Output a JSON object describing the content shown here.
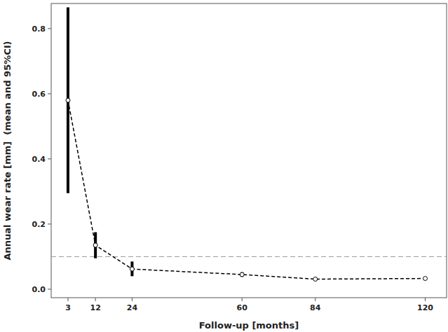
{
  "chart_data": {
    "type": "line",
    "x_label": "Follow-up [months]",
    "y_label": "Annual wear rate [mm]  (mean and 95%CI)",
    "x": [
      3,
      12,
      24,
      60,
      84,
      120
    ],
    "values": [
      0.58,
      0.135,
      0.062,
      0.045,
      0.031,
      0.033
    ],
    "ci_lower": [
      0.295,
      0.095,
      0.04,
      0.038,
      0.028,
      0.03
    ],
    "ci_upper": [
      0.865,
      0.175,
      0.085,
      0.052,
      0.034,
      0.036
    ],
    "reference_line": 0.1,
    "color": "#000000",
    "marker": "circle",
    "line_style": "dashed",
    "xlim": [
      -2.5,
      127
    ],
    "ylim": [
      -0.026,
      0.877
    ],
    "xticks": [
      3,
      12,
      24,
      60,
      84,
      120
    ],
    "yticks": [
      {
        "value": 0,
        "label": "0.0"
      },
      0.2,
      0.4,
      0.6,
      0.8
    ],
    "grid": false
  }
}
